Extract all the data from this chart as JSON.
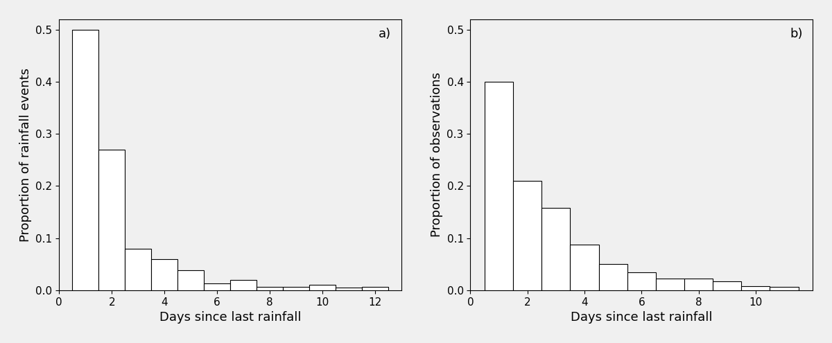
{
  "panel_a": {
    "label": "a)",
    "ylabel": "Proportion of rainfall events",
    "xlabel": "Days since last rainfall",
    "xlim": [
      0,
      13
    ],
    "ylim": [
      0,
      0.52
    ],
    "yticks": [
      0.0,
      0.1,
      0.2,
      0.3,
      0.4,
      0.5
    ],
    "xticks": [
      0,
      2,
      4,
      6,
      8,
      10,
      12
    ],
    "bar_lefts": [
      0.5,
      1.5,
      2.5,
      3.5,
      4.5,
      5.5,
      6.5,
      7.5,
      8.5,
      9.5,
      10.5,
      11.5
    ],
    "bar_heights": [
      0.5,
      0.27,
      0.08,
      0.06,
      0.038,
      0.013,
      0.02,
      0.007,
      0.007,
      0.01,
      0.005,
      0.007
    ]
  },
  "panel_b": {
    "label": "b)",
    "ylabel": "Proportion of observations",
    "xlabel": "Days since last rainfall",
    "xlim": [
      0,
      12
    ],
    "ylim": [
      0,
      0.52
    ],
    "yticks": [
      0.0,
      0.1,
      0.2,
      0.3,
      0.4,
      0.5
    ],
    "xticks": [
      0,
      2,
      4,
      6,
      8,
      10
    ],
    "bar_lefts": [
      0.5,
      1.5,
      2.5,
      3.5,
      4.5,
      5.5,
      6.5,
      7.5,
      8.5,
      9.5,
      10.5
    ],
    "bar_heights": [
      0.4,
      0.21,
      0.158,
      0.088,
      0.05,
      0.035,
      0.022,
      0.022,
      0.017,
      0.008,
      0.007
    ]
  },
  "bar_width": 1.0,
  "bar_color": "#ffffff",
  "bar_edgecolor": "#000000",
  "bar_linewidth": 0.8,
  "background_color": "#f0f0f0",
  "label_fontsize": 13,
  "tick_fontsize": 11,
  "annotation_fontsize": 13,
  "spine_color": "#000000"
}
